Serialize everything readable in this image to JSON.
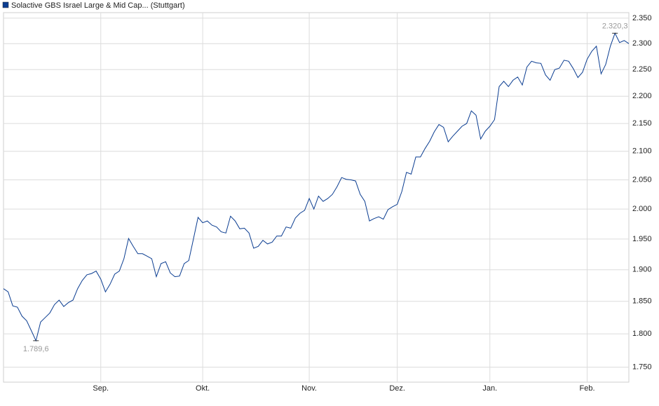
{
  "chart_data": {
    "type": "line",
    "log_scale": true,
    "grid": true,
    "categories": [
      null,
      null,
      null,
      null,
      null,
      null,
      null,
      null,
      null,
      null,
      null,
      null,
      null,
      null,
      null,
      null,
      null,
      null,
      null,
      null,
      null,
      "Sep.",
      null,
      null,
      null,
      null,
      null,
      null,
      null,
      null,
      null,
      null,
      null,
      null,
      null,
      null,
      null,
      null,
      null,
      null,
      null,
      null,
      null,
      "Okt.",
      null,
      null,
      null,
      null,
      null,
      null,
      null,
      null,
      null,
      null,
      null,
      null,
      null,
      null,
      null,
      null,
      null,
      null,
      null,
      null,
      null,
      null,
      "Nov.",
      null,
      null,
      null,
      null,
      null,
      null,
      null,
      null,
      null,
      null,
      null,
      null,
      null,
      null,
      null,
      null,
      null,
      null,
      "Dez.",
      null,
      null,
      null,
      null,
      null,
      null,
      null,
      null,
      null,
      null,
      null,
      null,
      null,
      null,
      null,
      null,
      null,
      null,
      null,
      "Jan.",
      null,
      null,
      null,
      null,
      null,
      null,
      null,
      null,
      null,
      null,
      null,
      null,
      null,
      null,
      null,
      null,
      null,
      null,
      null,
      null,
      "Feb.",
      null,
      null,
      null,
      null,
      null,
      null,
      null,
      null,
      null
    ],
    "series": [
      {
        "name": "Solactive GBS Israel Large & Mid Cap... (Stuttgart)",
        "color": "#0b3d91",
        "values": [
          1870,
          1865,
          1843,
          1841,
          1827,
          1820,
          1805,
          1789.6,
          1818,
          1825,
          1832,
          1845,
          1852,
          1842,
          1848,
          1852,
          1870,
          1883,
          1892,
          1894,
          1898,
          1885,
          1865,
          1877,
          1893,
          1898,
          1918,
          1951,
          1938,
          1926,
          1926,
          1922,
          1918,
          1889,
          1910,
          1913,
          1895,
          1889,
          1890,
          1910,
          1915,
          1950,
          1986,
          1977,
          1980,
          1973,
          1970,
          1962,
          1960,
          1988,
          1980,
          1967,
          1968,
          1960,
          1935,
          1938,
          1948,
          1942,
          1945,
          1955,
          1955,
          1970,
          1968,
          1985,
          1993,
          1998,
          2018,
          2000,
          2022,
          2013,
          2018,
          2025,
          2038,
          2054,
          2051,
          2050,
          2048,
          2025,
          2013,
          1980,
          1984,
          1987,
          1983,
          1999,
          2004,
          2008,
          2030,
          2063,
          2060,
          2090,
          2090,
          2105,
          2118,
          2135,
          2148,
          2143,
          2117,
          2127,
          2136,
          2145,
          2150,
          2173,
          2165,
          2122,
          2136,
          2145,
          2157,
          2218,
          2228,
          2218,
          2230,
          2236,
          2221,
          2255,
          2266,
          2263,
          2262,
          2240,
          2230,
          2250,
          2253,
          2268,
          2266,
          2252,
          2235,
          2245,
          2270,
          2285,
          2295,
          2242,
          2260,
          2295,
          2320.3,
          2302,
          2306,
          2300
        ]
      }
    ],
    "annotations": [
      "1.789,6",
      "2.320,3"
    ],
    "ylim": [
      1728,
      2361
    ],
    "yticks": [
      {
        "value": 1750,
        "label": "1.750"
      },
      {
        "value": 1800,
        "label": "1.800"
      },
      {
        "value": 1850,
        "label": "1.850"
      },
      {
        "value": 1900,
        "label": "1.900"
      },
      {
        "value": 1950,
        "label": "1.950"
      },
      {
        "value": 2000,
        "label": "2.000"
      },
      {
        "value": 2050,
        "label": "2.050"
      },
      {
        "value": 2100,
        "label": "2.100"
      },
      {
        "value": 2150,
        "label": "2.150"
      },
      {
        "value": 2200,
        "label": "2.200"
      },
      {
        "value": 2250,
        "label": "2.250"
      },
      {
        "value": 2300,
        "label": "2.300"
      },
      {
        "value": 2350,
        "label": "2.350"
      }
    ]
  }
}
